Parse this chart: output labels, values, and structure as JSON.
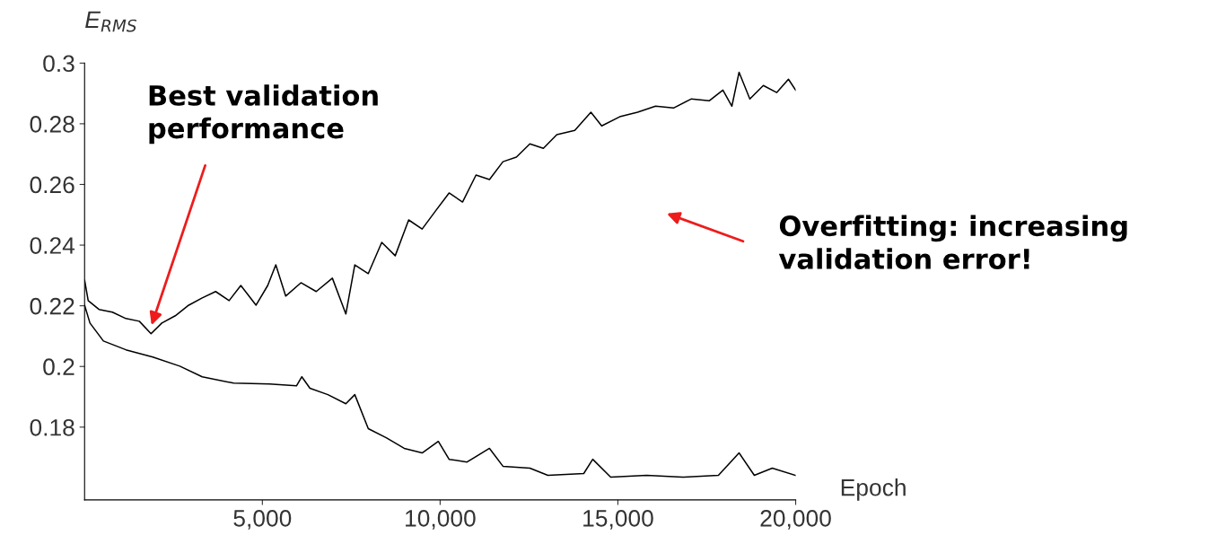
{
  "chart_data": {
    "type": "line",
    "xlabel": "Epoch",
    "ylabel": "E$_{RMS}$",
    "xlim": [
      0,
      20000
    ],
    "ylim": [
      0.156,
      0.3
    ],
    "xticks": [
      {
        "value": 5000,
        "label": "5,000"
      },
      {
        "value": 10000,
        "label": "10,000"
      },
      {
        "value": 15000,
        "label": "15,000"
      },
      {
        "value": 20000,
        "label": "20,000"
      }
    ],
    "yticks": [
      0.18,
      0.2,
      0.22,
      0.24,
      0.26,
      0.28,
      0.3
    ],
    "grid": false,
    "legend": false,
    "marker": "none",
    "line_style": "solid",
    "series": [
      {
        "color": "#000000",
        "x": [
          0,
          101,
          404,
          783,
          1162,
          1540,
          1869,
          2172,
          2550,
          2929,
          3308,
          3686,
          4065,
          4394,
          4823,
          5151,
          5378,
          5656,
          6085,
          6515,
          6969,
          7348,
          7600,
          7979,
          8358,
          8737,
          9115,
          9494,
          9873,
          10252,
          10630,
          11009,
          11388,
          11767,
          12145,
          12524,
          12903,
          13282,
          13787,
          14241,
          14544,
          15049,
          15554,
          16059,
          16564,
          17069,
          17574,
          17953,
          18206,
          18408,
          18711,
          19090,
          19469,
          19797,
          20000
        ],
        "values": [
          0.2285,
          0.2217,
          0.2188,
          0.2179,
          0.2158,
          0.2149,
          0.2108,
          0.2143,
          0.2167,
          0.2202,
          0.2226,
          0.2247,
          0.2217,
          0.2267,
          0.2202,
          0.2267,
          0.2335,
          0.2232,
          0.2276,
          0.2247,
          0.2291,
          0.2173,
          0.2335,
          0.2306,
          0.2409,
          0.2365,
          0.2483,
          0.2453,
          0.2513,
          0.2572,
          0.2542,
          0.2631,
          0.2616,
          0.2675,
          0.269,
          0.2734,
          0.2719,
          0.2764,
          0.2778,
          0.2838,
          0.2793,
          0.2823,
          0.2838,
          0.2858,
          0.2852,
          0.2882,
          0.2876,
          0.2911,
          0.2858,
          0.297,
          0.2882,
          0.2926,
          0.2903,
          0.2947,
          0.2911
        ]
      },
      {
        "color": "#000000",
        "x": [
          0,
          151,
          530,
          1162,
          1919,
          2677,
          3308,
          4192,
          5201,
          5959,
          6110,
          6338,
          6843,
          7348,
          7600,
          7979,
          8484,
          8989,
          9494,
          9949,
          10252,
          10757,
          11388,
          11767,
          12524,
          13030,
          14039,
          14292,
          14797,
          15807,
          16817,
          17827,
          18408,
          18837,
          19342,
          20000
        ],
        "values": [
          0.2202,
          0.2143,
          0.2084,
          0.2055,
          0.2031,
          0.2001,
          0.1966,
          0.1945,
          0.1942,
          0.1936,
          0.1966,
          0.1928,
          0.1907,
          0.1877,
          0.1907,
          0.1795,
          0.1765,
          0.173,
          0.1715,
          0.1753,
          0.1694,
          0.1685,
          0.173,
          0.1671,
          0.1665,
          0.1641,
          0.1647,
          0.1694,
          0.1635,
          0.1641,
          0.1635,
          0.1641,
          0.1715,
          0.1641,
          0.1665,
          0.1641
        ]
      }
    ],
    "annotations": [
      "Best validation\nperformance",
      "Overfitting: increasing\nvalidation error!"
    ]
  }
}
